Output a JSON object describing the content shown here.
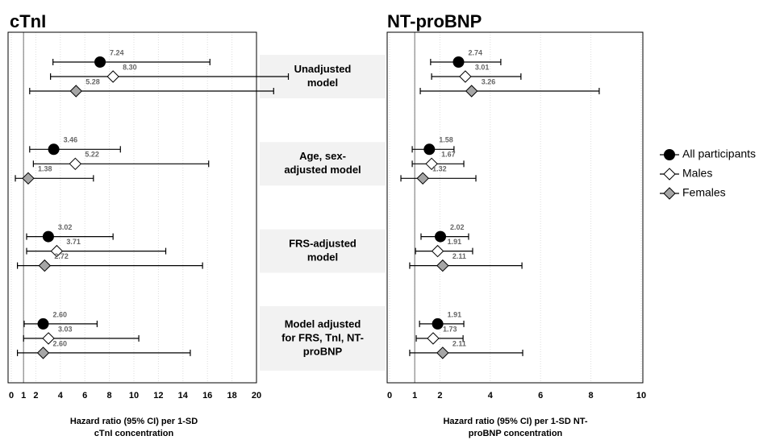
{
  "chart_data": [
    {
      "type": "forest",
      "title": "cTnI",
      "xlabel": [
        "Hazard ratio (95% CI) per 1-SD",
        "cTnI concentration"
      ],
      "xlim": [
        0,
        20
      ],
      "xticks": [
        0,
        1,
        2,
        4,
        6,
        8,
        10,
        12,
        14,
        16,
        18,
        20
      ],
      "reference": 1,
      "grid": true,
      "categories": [
        [
          "Unadjusted",
          "model"
        ],
        [
          "Age, sex-",
          "adjusted model"
        ],
        [
          "FRS-adjusted",
          "model"
        ],
        [
          "Model adjusted",
          "for FRS, TnI, NT-",
          "proBNP"
        ]
      ],
      "series": [
        {
          "name": "All participants",
          "color": "#000000",
          "marker": "circle",
          "values": [
            7.24,
            3.46,
            3.02,
            2.6
          ],
          "value_labels": [
            "7.24",
            "3.46",
            "3.02",
            "2.60"
          ],
          "lower": [
            3.4,
            1.5,
            1.25,
            1.05
          ],
          "upper": [
            16.2,
            8.9,
            8.3,
            7.0
          ]
        },
        {
          "name": "Males",
          "color": "#ffffff",
          "marker": "diamond",
          "values": [
            8.3,
            5.22,
            3.71,
            3.03
          ],
          "value_labels": [
            "8.30",
            "5.22",
            "3.71",
            "3.03"
          ],
          "lower": [
            3.2,
            1.8,
            1.25,
            1.0
          ],
          "upper": [
            22.6,
            16.1,
            12.6,
            10.4
          ]
        },
        {
          "name": "Females",
          "color": "#a6a6a6",
          "marker": "diamond",
          "values": [
            5.28,
            1.38,
            2.72,
            2.6
          ],
          "value_labels": [
            "5.28",
            "1.38",
            "2.72",
            "2.60"
          ],
          "lower": [
            1.5,
            0.33,
            0.5,
            0.5
          ],
          "upper": [
            21.4,
            6.7,
            15.6,
            14.6
          ]
        }
      ]
    },
    {
      "type": "forest",
      "title": "NT-proBNP",
      "xlabel": [
        "Hazard ratio (95% CI) per 1-SD NT-",
        "proBNP concentration"
      ],
      "xlim": [
        0,
        10
      ],
      "xticks": [
        0,
        1,
        2,
        4,
        6,
        8,
        10
      ],
      "reference": 1,
      "grid": true,
      "series": [
        {
          "color": "#000000",
          "marker": "circle",
          "values": [
            2.74,
            1.58,
            2.02,
            1.91
          ],
          "value_labels": [
            "2.74",
            "1.58",
            "2.02",
            "1.91"
          ],
          "lower": [
            1.63,
            0.9,
            1.25,
            1.19
          ],
          "upper": [
            4.42,
            2.56,
            3.14,
            2.95
          ]
        },
        {
          "color": "#ffffff",
          "marker": "diamond",
          "values": [
            3.01,
            1.67,
            1.91,
            1.73
          ],
          "value_labels": [
            "3.01",
            "1.67",
            "1.91",
            "1.73"
          ],
          "lower": [
            1.67,
            0.9,
            1.03,
            1.06
          ],
          "upper": [
            5.22,
            2.95,
            3.3,
            2.92
          ]
        },
        {
          "color": "#a6a6a6",
          "marker": "diamond",
          "values": [
            3.26,
            1.32,
            2.11,
            2.11
          ],
          "value_labels": [
            "3.26",
            "1.32",
            "2.11",
            "2.11"
          ],
          "lower": [
            1.22,
            0.45,
            0.8,
            0.8
          ],
          "upper": [
            8.33,
            3.43,
            5.26,
            5.29
          ]
        }
      ]
    }
  ]
}
